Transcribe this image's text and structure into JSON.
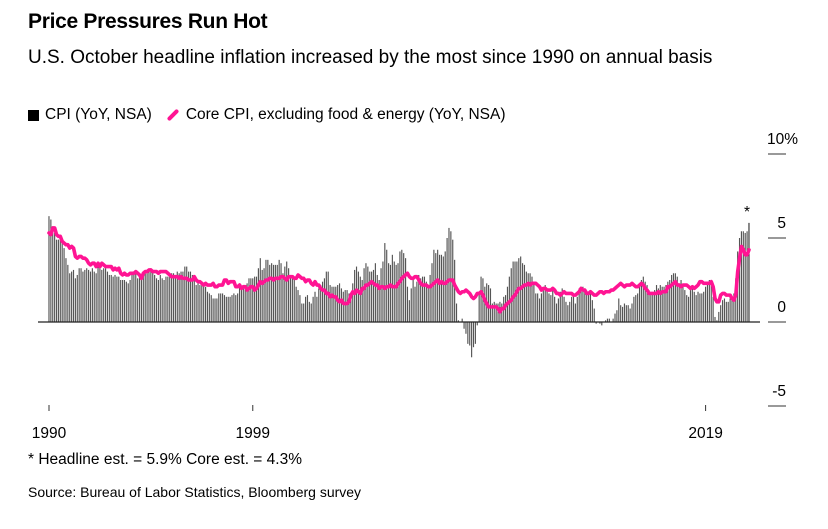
{
  "header": {
    "title": "Price Pressures Run Hot",
    "subtitle": "U.S. October headline inflation increased by the most since 1990 on annual basis"
  },
  "footer": {
    "footnote": "* Headline est. = 5.9% Core est. = 4.3%",
    "source": "Source: Bureau of Labor Statistics, Bloomberg survey"
  },
  "chart_data": {
    "type": "bar+line",
    "title": "Price Pressures Run Hot",
    "xlabel": "",
    "ylabel": "",
    "x_range": [
      "1990-11",
      "2021-10"
    ],
    "frequency": "monthly",
    "ylim": [
      -5,
      10
    ],
    "y_ticks": [
      {
        "value": 10,
        "label": "10%"
      },
      {
        "value": 5,
        "label": "5"
      },
      {
        "value": 0,
        "label": "0"
      },
      {
        "value": -5,
        "label": "-5"
      }
    ],
    "x_ticks": [
      "1990",
      "1999",
      "2019"
    ],
    "grid": false,
    "legend_position": "top-left",
    "annotation": "*",
    "colors": {
      "cpi": "#555555",
      "core": "#ff1493"
    },
    "series": [
      {
        "name": "CPI (YoY, NSA)",
        "kind": "bar",
        "values": [
          6.3,
          6.1,
          5.7,
          5.3,
          4.9,
          4.9,
          5.0,
          4.7,
          4.4,
          3.8,
          3.4,
          2.9,
          3.0,
          3.1,
          2.6,
          2.8,
          3.2,
          3.2,
          3.0,
          3.1,
          3.2,
          3.1,
          3.0,
          3.2,
          3.0,
          2.9,
          3.3,
          3.2,
          3.1,
          3.2,
          3.2,
          3.0,
          2.8,
          2.8,
          2.7,
          2.8,
          2.7,
          2.7,
          2.5,
          2.5,
          2.5,
          2.4,
          2.3,
          2.5,
          2.8,
          2.9,
          3.0,
          2.6,
          2.7,
          2.7,
          2.8,
          2.9,
          2.9,
          3.1,
          3.2,
          3.0,
          2.8,
          2.6,
          2.5,
          2.8,
          2.6,
          2.5,
          2.7,
          2.7,
          2.8,
          2.9,
          2.9,
          2.8,
          3.0,
          2.9,
          3.0,
          3.0,
          3.3,
          3.3,
          3.0,
          3.0,
          2.8,
          2.5,
          2.2,
          2.3,
          2.2,
          2.2,
          2.2,
          2.1,
          1.8,
          1.7,
          1.6,
          1.4,
          1.4,
          1.4,
          1.7,
          1.7,
          1.7,
          1.6,
          1.5,
          1.5,
          1.5,
          1.6,
          1.7,
          1.6,
          1.7,
          2.3,
          2.1,
          2.0,
          2.1,
          2.3,
          2.6,
          2.6,
          2.6,
          2.7,
          2.7,
          3.2,
          3.8,
          3.1,
          3.2,
          3.7,
          3.7,
          3.4,
          3.5,
          3.4,
          3.4,
          3.4,
          3.7,
          3.5,
          2.9,
          3.3,
          3.6,
          3.2,
          2.7,
          2.7,
          2.6,
          2.1,
          1.9,
          1.6,
          1.1,
          1.1,
          1.5,
          1.6,
          1.2,
          1.1,
          1.5,
          1.8,
          1.5,
          2.0,
          2.2,
          2.4,
          2.6,
          3.0,
          3.0,
          2.2,
          2.1,
          2.1,
          2.1,
          2.2,
          2.3,
          2.0,
          1.8,
          1.9,
          1.9,
          1.7,
          1.7,
          2.3,
          3.1,
          3.3,
          3.0,
          2.7,
          2.5,
          3.2,
          3.5,
          3.3,
          3.0,
          3.0,
          3.1,
          3.5,
          2.8,
          2.5,
          3.2,
          3.6,
          4.7,
          4.3,
          3.5,
          3.4,
          4.0,
          3.6,
          3.4,
          3.5,
          4.2,
          4.3,
          4.1,
          3.8,
          2.1,
          1.3,
          2.0,
          2.5,
          2.1,
          2.4,
          2.8,
          2.6,
          2.7,
          2.7,
          2.4,
          2.0,
          2.8,
          3.5,
          4.3,
          4.1,
          4.3,
          4.0,
          4.0,
          3.9,
          4.2,
          5.0,
          5.6,
          5.4,
          4.9,
          3.7,
          1.1,
          0.1,
          0.0,
          0.2,
          -0.4,
          -0.7,
          -1.3,
          -1.4,
          -2.1,
          -1.5,
          -1.3,
          -0.2,
          1.8,
          2.7,
          2.6,
          2.1,
          2.3,
          2.2,
          2.0,
          1.1,
          1.2,
          1.1,
          1.1,
          1.2,
          1.1,
          1.5,
          1.6,
          2.1,
          2.7,
          3.2,
          3.6,
          3.6,
          3.6,
          3.8,
          3.9,
          3.5,
          3.4,
          3.0,
          2.9,
          2.9,
          2.7,
          2.3,
          1.7,
          1.7,
          1.4,
          1.7,
          2.0,
          2.2,
          1.8,
          1.7,
          1.6,
          2.0,
          1.5,
          1.1,
          1.4,
          1.8,
          2.0,
          1.5,
          1.2,
          1.0,
          1.2,
          1.5,
          1.6,
          1.1,
          1.5,
          2.0,
          2.1,
          2.1,
          2.0,
          1.7,
          1.7,
          1.7,
          1.3,
          0.8,
          -0.1,
          0.0,
          -0.1,
          -0.2,
          0.0,
          0.1,
          0.2,
          0.2,
          0.0,
          0.2,
          0.5,
          0.7,
          1.4,
          1.0,
          0.9,
          1.1,
          1.0,
          1.0,
          0.8,
          1.1,
          1.5,
          1.6,
          1.7,
          2.1,
          2.5,
          2.7,
          2.4,
          2.2,
          1.9,
          1.6,
          1.7,
          1.9,
          2.2,
          2.0,
          2.2,
          2.1,
          2.1,
          2.2,
          2.4,
          2.5,
          2.8,
          2.9,
          2.9,
          2.7,
          2.3,
          2.5,
          2.2,
          1.9,
          1.6,
          1.5,
          1.9,
          2.0,
          1.8,
          1.6,
          1.8,
          1.7,
          1.7,
          1.8,
          2.1,
          2.3,
          2.5,
          2.3,
          1.5,
          0.3,
          0.1,
          0.6,
          1.0,
          1.3,
          1.4,
          1.2,
          1.2,
          1.4,
          1.4,
          1.7,
          2.6,
          4.2,
          5.0,
          5.4,
          5.4,
          5.3,
          5.4,
          5.9
        ]
      },
      {
        "name": "Core CPI, excluding food & energy (YoY, NSA)",
        "kind": "line",
        "values": [
          5.3,
          5.2,
          5.6,
          5.6,
          5.2,
          5.1,
          5.1,
          4.8,
          4.7,
          4.6,
          4.6,
          4.4,
          4.5,
          4.4,
          3.9,
          3.8,
          3.9,
          3.9,
          3.8,
          3.8,
          3.7,
          3.5,
          3.4,
          3.5,
          3.5,
          3.3,
          3.5,
          3.3,
          3.5,
          3.4,
          3.3,
          3.3,
          3.3,
          3.3,
          3.1,
          3.2,
          3.1,
          3.2,
          2.9,
          2.8,
          2.9,
          2.8,
          2.8,
          2.9,
          2.9,
          2.9,
          3.0,
          2.9,
          2.8,
          2.6,
          2.9,
          3.0,
          3.0,
          3.1,
          3.1,
          3.0,
          3.0,
          3.0,
          2.9,
          3.0,
          3.0,
          3.0,
          3.0,
          2.9,
          2.8,
          2.7,
          2.7,
          2.7,
          2.7,
          2.6,
          2.7,
          2.6,
          2.6,
          2.6,
          2.5,
          2.5,
          2.5,
          2.7,
          2.5,
          2.4,
          2.4,
          2.3,
          2.2,
          2.3,
          2.2,
          2.2,
          2.2,
          2.3,
          2.1,
          2.1,
          2.2,
          2.2,
          2.2,
          2.5,
          2.5,
          2.3,
          2.4,
          2.4,
          2.4,
          2.1,
          2.1,
          2.2,
          2.0,
          2.1,
          2.1,
          1.9,
          2.0,
          2.1,
          2.1,
          1.9,
          2.0,
          2.2,
          2.4,
          2.3,
          2.4,
          2.5,
          2.5,
          2.6,
          2.6,
          2.5,
          2.6,
          2.6,
          2.6,
          2.7,
          2.7,
          2.6,
          2.5,
          2.7,
          2.7,
          2.7,
          2.6,
          2.6,
          2.8,
          2.7,
          2.6,
          2.6,
          2.4,
          2.5,
          2.5,
          2.3,
          2.2,
          2.4,
          2.2,
          2.2,
          2.0,
          1.9,
          1.9,
          1.7,
          1.7,
          1.5,
          1.6,
          1.5,
          1.5,
          1.3,
          1.2,
          1.3,
          1.1,
          1.1,
          1.1,
          1.2,
          1.6,
          1.8,
          1.7,
          1.9,
          1.8,
          1.7,
          2.0,
          2.0,
          2.2,
          2.2,
          2.3,
          2.4,
          2.3,
          2.2,
          2.2,
          2.0,
          2.1,
          2.1,
          2.0,
          2.1,
          2.1,
          2.2,
          2.1,
          2.1,
          2.1,
          2.3,
          2.4,
          2.6,
          2.7,
          2.8,
          2.9,
          2.7,
          2.6,
          2.6,
          2.7,
          2.7,
          2.5,
          2.3,
          2.2,
          2.2,
          2.2,
          2.1,
          2.1,
          2.2,
          2.3,
          2.4,
          2.5,
          2.3,
          2.4,
          2.3,
          2.3,
          2.4,
          2.5,
          2.5,
          2.5,
          2.2,
          2.0,
          1.8,
          1.7,
          1.8,
          1.8,
          1.9,
          1.8,
          1.7,
          1.5,
          1.4,
          1.5,
          1.7,
          1.7,
          1.8,
          1.6,
          1.3,
          1.1,
          0.9,
          0.9,
          0.9,
          0.9,
          0.9,
          0.8,
          0.6,
          0.8,
          0.8,
          1.0,
          1.1,
          1.2,
          1.3,
          1.5,
          1.6,
          1.8,
          2.0,
          2.0,
          2.1,
          2.2,
          2.2,
          2.3,
          2.2,
          2.3,
          2.3,
          2.3,
          2.2,
          2.1,
          1.9,
          2.0,
          2.0,
          1.9,
          1.9,
          1.9,
          2.0,
          1.9,
          1.7,
          1.7,
          1.6,
          1.7,
          1.8,
          1.7,
          1.7,
          1.7,
          1.7,
          1.6,
          1.6,
          1.7,
          1.8,
          2.0,
          1.9,
          1.9,
          1.7,
          1.7,
          1.8,
          1.7,
          1.6,
          1.6,
          1.7,
          1.8,
          1.8,
          1.7,
          1.8,
          1.8,
          1.8,
          1.9,
          1.9,
          2.0,
          2.1,
          2.2,
          2.3,
          2.2,
          2.1,
          2.2,
          2.2,
          2.2,
          2.3,
          2.2,
          2.1,
          2.1,
          2.2,
          2.3,
          2.2,
          2.0,
          1.9,
          1.7,
          1.7,
          1.7,
          1.7,
          1.7,
          1.8,
          1.7,
          1.8,
          1.8,
          1.8,
          2.1,
          2.1,
          2.2,
          2.3,
          2.4,
          2.2,
          2.2,
          2.1,
          2.2,
          2.2,
          2.2,
          2.1,
          2.0,
          2.1,
          2.0,
          2.1,
          2.2,
          2.4,
          2.4,
          2.3,
          2.3,
          2.3,
          2.3,
          2.4,
          2.1,
          1.4,
          1.2,
          1.2,
          1.6,
          1.7,
          1.7,
          1.6,
          1.6,
          1.6,
          1.4,
          1.3,
          1.6,
          3.0,
          3.8,
          4.5,
          4.3,
          4.0,
          4.0,
          4.3
        ]
      }
    ]
  }
}
